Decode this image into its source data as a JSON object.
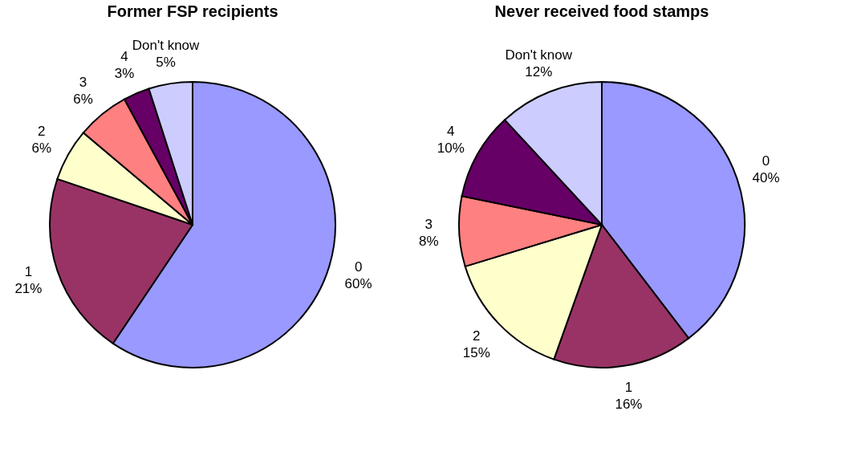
{
  "chart_data": [
    {
      "type": "pie",
      "title": "Former FSP recipients",
      "categories": [
        "0",
        "1",
        "2",
        "3",
        "4",
        "Don't know"
      ],
      "values": [
        60,
        21,
        6,
        6,
        3,
        5
      ],
      "value_labels": [
        "60%",
        "21%",
        "6%",
        "6%",
        "3%",
        "5%"
      ],
      "colors": [
        "#9999ff",
        "#993366",
        "#ffffcc",
        "#ff8080",
        "#660066",
        "#ccccff"
      ],
      "legend": false
    },
    {
      "type": "pie",
      "title": "Never received food stamps",
      "categories": [
        "0",
        "1",
        "2",
        "3",
        "4",
        "Don't know"
      ],
      "values": [
        40,
        16,
        15,
        8,
        10,
        12
      ],
      "value_labels": [
        "40%",
        "16%",
        "15%",
        "8%",
        "10%",
        "12%"
      ],
      "colors": [
        "#9999ff",
        "#993366",
        "#ffffcc",
        "#ff8080",
        "#660066",
        "#ccccff"
      ],
      "legend": false
    }
  ]
}
